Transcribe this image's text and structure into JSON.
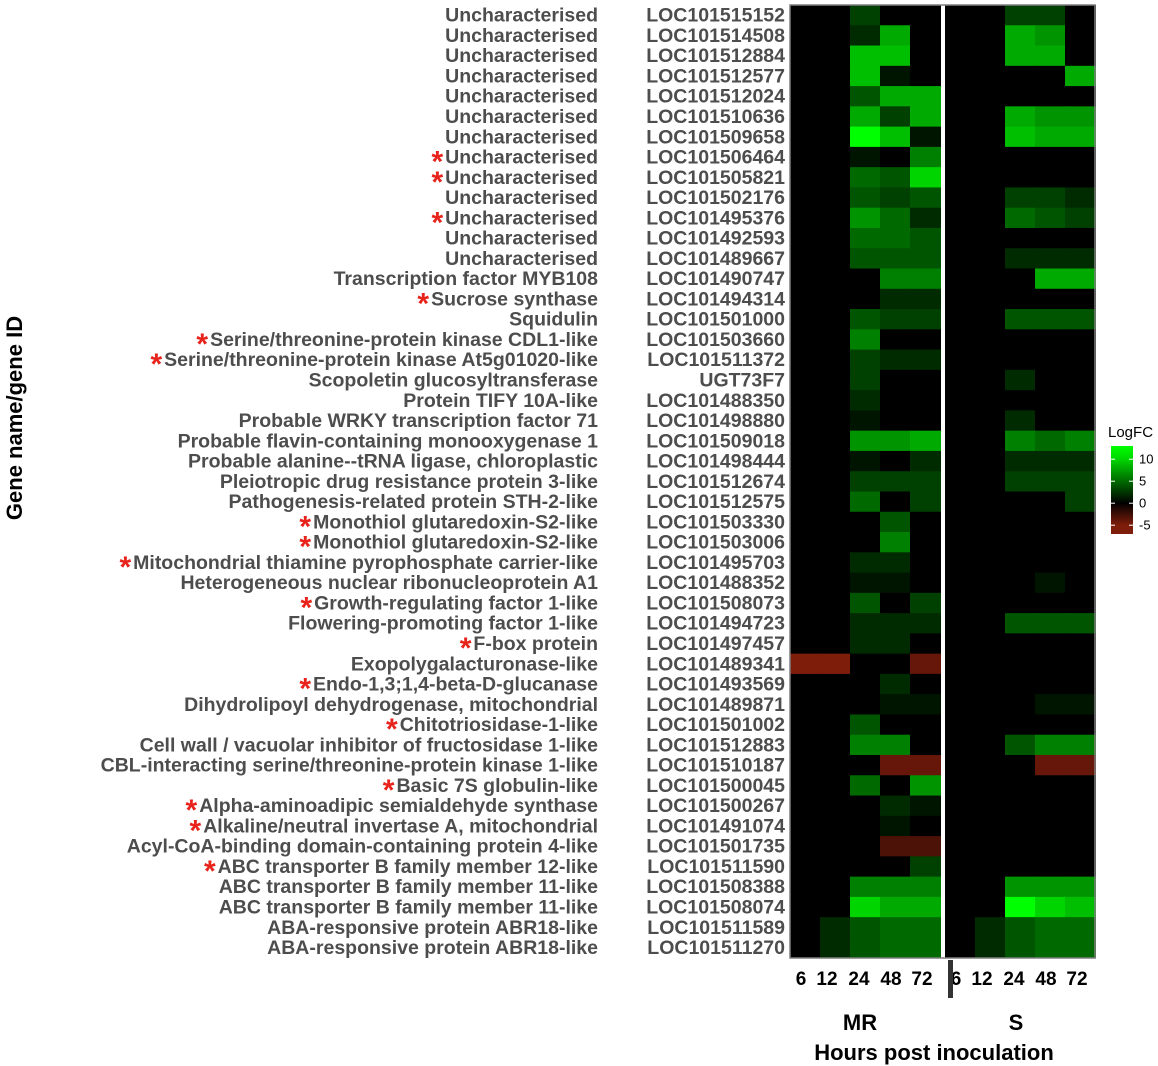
{
  "chart_data": {
    "type": "heatmap",
    "ylabel": "Gene name/gene ID",
    "xlabel": "Hours post inoculation",
    "legend": {
      "title": "LogFC",
      "ticks": [
        10,
        5,
        0,
        -5
      ],
      "range": [
        -7,
        13
      ],
      "placement": "right"
    },
    "groups": [
      "MR",
      "S"
    ],
    "timepoints": [
      "6",
      "12",
      "24",
      "48",
      "72"
    ],
    "colors": {
      "high": "#00ff00",
      "zero": "#000000",
      "low": "#7f1d0b"
    },
    "genes": [
      {
        "name": "Uncharacterised",
        "id": "LOC101515152",
        "star": false,
        "MR": [
          0,
          0,
          3,
          0,
          0
        ],
        "S": [
          0,
          0,
          3,
          3,
          0
        ]
      },
      {
        "name": "Uncharacterised",
        "id": "LOC101514508",
        "star": false,
        "MR": [
          0,
          0,
          2,
          8,
          0
        ],
        "S": [
          0,
          0,
          8,
          7,
          0
        ]
      },
      {
        "name": "Uncharacterised",
        "id": "LOC101512884",
        "star": false,
        "MR": [
          0,
          0,
          9,
          9,
          0
        ],
        "S": [
          0,
          0,
          8,
          8,
          0
        ]
      },
      {
        "name": "Uncharacterised",
        "id": "LOC101512577",
        "star": false,
        "MR": [
          0,
          0,
          9,
          1,
          0
        ],
        "S": [
          0,
          0,
          0,
          0,
          8
        ]
      },
      {
        "name": "Uncharacterised",
        "id": "LOC101512024",
        "star": false,
        "MR": [
          0,
          0,
          4,
          8,
          8
        ],
        "S": [
          0,
          0,
          0,
          0,
          0
        ]
      },
      {
        "name": "Uncharacterised",
        "id": "LOC101510636",
        "star": false,
        "MR": [
          0,
          0,
          8,
          3,
          8
        ],
        "S": [
          0,
          0,
          8,
          7,
          7
        ]
      },
      {
        "name": "Uncharacterised",
        "id": "LOC101509658",
        "star": false,
        "MR": [
          0,
          0,
          12,
          9,
          1
        ],
        "S": [
          0,
          0,
          9,
          8,
          8
        ]
      },
      {
        "name": "Uncharacterised",
        "id": "LOC101506464",
        "star": true,
        "MR": [
          0,
          0,
          1,
          0,
          6
        ],
        "S": [
          0,
          0,
          0,
          0,
          0
        ]
      },
      {
        "name": "Uncharacterised",
        "id": "LOC101505821",
        "star": true,
        "MR": [
          0,
          0,
          5,
          4,
          10
        ],
        "S": [
          0,
          0,
          0,
          0,
          0
        ]
      },
      {
        "name": "Uncharacterised",
        "id": "LOC101502176",
        "star": false,
        "MR": [
          0,
          0,
          4,
          3,
          4
        ],
        "S": [
          0,
          0,
          3,
          3,
          2
        ]
      },
      {
        "name": "Uncharacterised",
        "id": "LOC101495376",
        "star": true,
        "MR": [
          0,
          0,
          7,
          5,
          2
        ],
        "S": [
          0,
          0,
          5,
          4,
          3
        ]
      },
      {
        "name": "Uncharacterised",
        "id": "LOC101492593",
        "star": false,
        "MR": [
          0,
          0,
          5,
          5,
          4
        ],
        "S": [
          0,
          0,
          0,
          0,
          0
        ]
      },
      {
        "name": "Uncharacterised",
        "id": "LOC101489667",
        "star": false,
        "MR": [
          0,
          0,
          4,
          4,
          4
        ],
        "S": [
          0,
          0,
          2,
          2,
          2
        ]
      },
      {
        "name": "Transcription factor MYB108",
        "id": "LOC101490747",
        "star": false,
        "MR": [
          0,
          0,
          0,
          6,
          6
        ],
        "S": [
          0,
          0,
          0,
          8,
          8
        ]
      },
      {
        "name": "Sucrose synthase",
        "id": "LOC101494314",
        "star": true,
        "MR": [
          0,
          0,
          0,
          2,
          2
        ],
        "S": [
          0,
          0,
          0,
          0,
          0
        ]
      },
      {
        "name": "Squidulin",
        "id": "LOC101501000",
        "star": false,
        "MR": [
          0,
          0,
          4,
          3,
          3
        ],
        "S": [
          0,
          0,
          4,
          4,
          4
        ]
      },
      {
        "name": "Serine/threonine-protein kinase CDL1-like",
        "id": "LOC101503660",
        "star": true,
        "MR": [
          0,
          0,
          6,
          0,
          0
        ],
        "S": [
          0,
          0,
          0,
          0,
          0
        ]
      },
      {
        "name": "Serine/threonine-protein kinase At5g01020-like",
        "id": "LOC101511372",
        "star": true,
        "MR": [
          0,
          0,
          3,
          2,
          2
        ],
        "S": [
          0,
          0,
          0,
          0,
          0
        ]
      },
      {
        "name": "Scopoletin glucosyltransferase",
        "id": "UGT73F7",
        "star": false,
        "MR": [
          0,
          0,
          3,
          0,
          0
        ],
        "S": [
          0,
          0,
          2,
          0,
          0
        ]
      },
      {
        "name": "Protein TIFY 10A-like",
        "id": "LOC101488350",
        "star": false,
        "MR": [
          0,
          0,
          2,
          0,
          0
        ],
        "S": [
          0,
          0,
          0,
          0,
          0
        ]
      },
      {
        "name": "Probable WRKY transcription factor 71",
        "id": "LOC101498880",
        "star": false,
        "MR": [
          0,
          0,
          1,
          0,
          0
        ],
        "S": [
          0,
          0,
          2,
          0,
          0
        ]
      },
      {
        "name": "Probable flavin-containing monooxygenase 1",
        "id": "LOC101509018",
        "star": false,
        "MR": [
          0,
          0,
          7,
          7,
          8
        ],
        "S": [
          0,
          0,
          6,
          5,
          6
        ]
      },
      {
        "name": "Probable alanine--tRNA ligase, chloroplastic",
        "id": "LOC101498444",
        "star": false,
        "MR": [
          0,
          0,
          1,
          0,
          2
        ],
        "S": [
          0,
          0,
          2,
          2,
          2
        ]
      },
      {
        "name": "Pleiotropic drug resistance protein 3-like",
        "id": "LOC101512674",
        "star": false,
        "MR": [
          0,
          0,
          3,
          3,
          3
        ],
        "S": [
          0,
          0,
          3,
          3,
          3
        ]
      },
      {
        "name": "Pathogenesis-related protein STH-2-like",
        "id": "LOC101512575",
        "star": false,
        "MR": [
          0,
          0,
          5,
          0,
          3
        ],
        "S": [
          0,
          0,
          0,
          0,
          3
        ]
      },
      {
        "name": "Monothiol glutaredoxin-S2-like",
        "id": "LOC101503330",
        "star": true,
        "MR": [
          0,
          0,
          0,
          4,
          0
        ],
        "S": [
          0,
          0,
          0,
          0,
          0
        ]
      },
      {
        "name": "Monothiol glutaredoxin-S2-like",
        "id": "LOC101503006",
        "star": true,
        "MR": [
          0,
          0,
          0,
          6,
          0
        ],
        "S": [
          0,
          0,
          0,
          0,
          0
        ]
      },
      {
        "name": "Mitochondrial thiamine pyrophosphate carrier-like",
        "id": "LOC101495703",
        "star": true,
        "MR": [
          0,
          0,
          2,
          2,
          0
        ],
        "S": [
          0,
          0,
          0,
          0,
          0
        ]
      },
      {
        "name": "Heterogeneous nuclear ribonucleoprotein A1",
        "id": "LOC101488352",
        "star": false,
        "MR": [
          0,
          0,
          1,
          1,
          0
        ],
        "S": [
          0,
          0,
          0,
          1,
          0
        ]
      },
      {
        "name": "Growth-regulating factor 1-like",
        "id": "LOC101508073",
        "star": true,
        "MR": [
          0,
          0,
          4,
          0,
          3
        ],
        "S": [
          0,
          0,
          0,
          0,
          0
        ]
      },
      {
        "name": "Flowering-promoting factor 1-like",
        "id": "LOC101494723",
        "star": false,
        "MR": [
          0,
          0,
          2,
          2,
          2
        ],
        "S": [
          0,
          0,
          4,
          4,
          4
        ]
      },
      {
        "name": "F-box protein",
        "id": "LOC101497457",
        "star": true,
        "MR": [
          0,
          0,
          2,
          2,
          0
        ],
        "S": [
          0,
          0,
          0,
          0,
          0
        ]
      },
      {
        "name": "Exopolygalacturonase-like",
        "id": "LOC101489341",
        "star": false,
        "MR": [
          -5,
          -5,
          0,
          0,
          -4
        ],
        "S": [
          0,
          0,
          0,
          0,
          0
        ]
      },
      {
        "name": "Endo-1,3;1,4-beta-D-glucanase",
        "id": "LOC101493569",
        "star": true,
        "MR": [
          0,
          0,
          0,
          2,
          0
        ],
        "S": [
          0,
          0,
          0,
          0,
          0
        ]
      },
      {
        "name": "Dihydrolipoyl dehydrogenase, mitochondrial",
        "id": "LOC101489871",
        "star": false,
        "MR": [
          0,
          0,
          0,
          1,
          1
        ],
        "S": [
          0,
          0,
          0,
          1,
          1
        ]
      },
      {
        "name": "Chitotriosidase-1-like",
        "id": "LOC101501002",
        "star": true,
        "MR": [
          0,
          0,
          4,
          0,
          0
        ],
        "S": [
          0,
          0,
          0,
          0,
          0
        ]
      },
      {
        "name": "Cell wall / vacuolar inhibitor of fructosidase 1-like",
        "id": "LOC101512883",
        "star": false,
        "MR": [
          0,
          0,
          6,
          6,
          0
        ],
        "S": [
          0,
          0,
          4,
          6,
          6
        ]
      },
      {
        "name": "CBL-interacting serine/threonine-protein kinase 1-like",
        "id": "LOC101510187",
        "star": false,
        "MR": [
          0,
          0,
          0,
          -4,
          -4
        ],
        "S": [
          0,
          0,
          0,
          -4,
          -4
        ]
      },
      {
        "name": "Basic 7S globulin-like",
        "id": "LOC101500045",
        "star": true,
        "MR": [
          0,
          0,
          5,
          0,
          7
        ],
        "S": [
          0,
          0,
          0,
          0,
          0
        ]
      },
      {
        "name": "Alpha-aminoadipic semialdehyde synthase",
        "id": "LOC101500267",
        "star": true,
        "MR": [
          0,
          0,
          0,
          2,
          1
        ],
        "S": [
          0,
          0,
          0,
          0,
          0
        ]
      },
      {
        "name": "Alkaline/neutral invertase A, mitochondrial",
        "id": "LOC101491074",
        "star": true,
        "MR": [
          0,
          0,
          0,
          1,
          0
        ],
        "S": [
          0,
          0,
          0,
          0,
          0
        ]
      },
      {
        "name": "Acyl-CoA-binding domain-containing protein 4-like",
        "id": "LOC101501735",
        "star": false,
        "MR": [
          0,
          0,
          0,
          -3,
          -3
        ],
        "S": [
          0,
          0,
          0,
          0,
          0
        ]
      },
      {
        "name": "ABC transporter B family member 12-like",
        "id": "LOC101511590",
        "star": true,
        "MR": [
          0,
          0,
          0,
          0,
          3
        ],
        "S": [
          0,
          0,
          0,
          0,
          0
        ]
      },
      {
        "name": "ABC transporter B family member 11-like",
        "id": "LOC101508388",
        "star": false,
        "MR": [
          0,
          0,
          6,
          6,
          6
        ],
        "S": [
          0,
          0,
          7,
          7,
          7
        ]
      },
      {
        "name": "ABC transporter B family member 11-like",
        "id": "LOC101508074",
        "star": false,
        "MR": [
          0,
          0,
          10,
          8,
          8
        ],
        "S": [
          0,
          0,
          12,
          10,
          9
        ]
      },
      {
        "name": "ABA-responsive protein ABR18-like",
        "id": "LOC101511589",
        "star": false,
        "MR": [
          0,
          2,
          4,
          5,
          5
        ],
        "S": [
          0,
          2,
          4,
          5,
          5
        ]
      },
      {
        "name": "ABA-responsive protein ABR18-like",
        "id": "LOC101511270",
        "star": false,
        "MR": [
          0,
          2,
          4,
          5,
          5
        ],
        "S": [
          0,
          2,
          4,
          5,
          5
        ]
      }
    ]
  }
}
